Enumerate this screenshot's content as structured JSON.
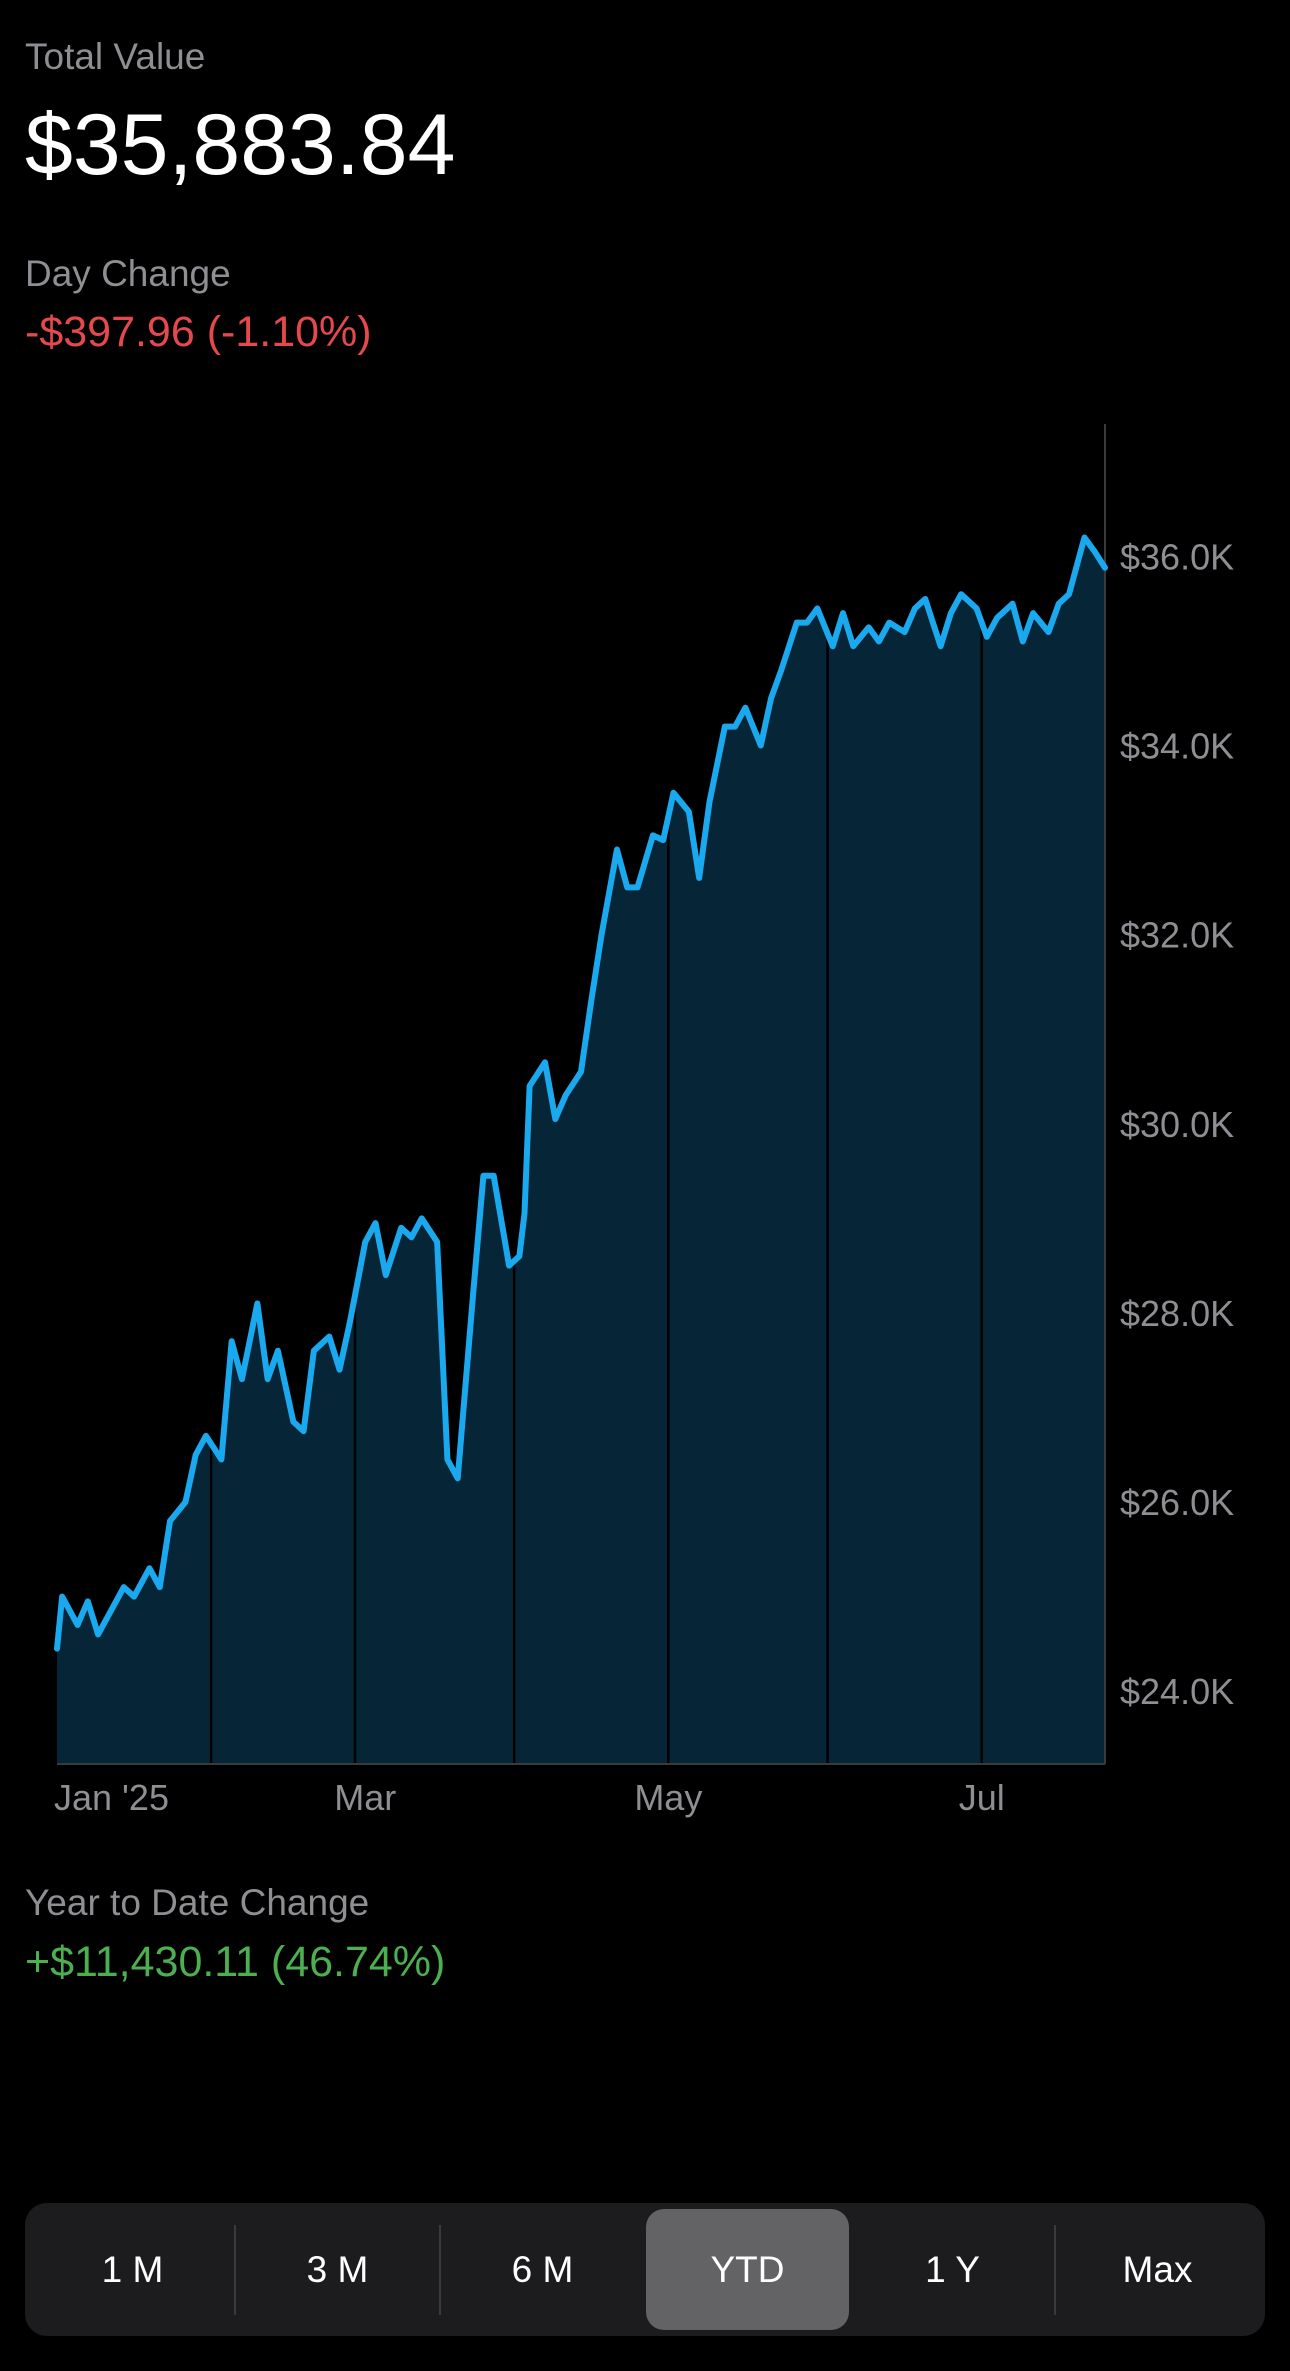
{
  "header": {
    "total_value_label": "Total Value",
    "total_value": "$35,883.84",
    "day_change_label": "Day Change",
    "day_change": "-$397.96 (-1.10%)"
  },
  "footer": {
    "ytd_label": "Year to Date Change",
    "ytd_change": "+$11,430.11 (46.74%)"
  },
  "colors": {
    "negative": "#e5484d",
    "positive": "#4caf50",
    "line": "#1aa9ee",
    "area": "#062536",
    "muted": "#8e8e93"
  },
  "range_selector": {
    "options": [
      "1 M",
      "3 M",
      "6 M",
      "YTD",
      "1 Y",
      "Max"
    ],
    "selected": "YTD"
  },
  "chart_data": {
    "type": "area",
    "y_tick_labels": [
      "$36.0K",
      "$34.0K",
      "$32.0K",
      "$30.0K",
      "$28.0K",
      "$26.0K",
      "$24.0K"
    ],
    "y_ticks": [
      36000,
      34000,
      32000,
      30000,
      28000,
      26000,
      24000
    ],
    "x_tick_labels": [
      "Jan '25",
      "Mar",
      "May",
      "Jul"
    ],
    "x_tick_dates": [
      "2025-01-02",
      "2025-03-03",
      "2025-05-01",
      "2025-07-01"
    ],
    "month_gridline_dates": [
      "2025-02-01",
      "2025-03-01",
      "2025-04-01",
      "2025-05-01",
      "2025-06-01",
      "2025-07-01"
    ],
    "ylim": [
      23230,
      37400
    ],
    "xlim": [
      "2025-01-02",
      "2025-07-25"
    ],
    "x_scale": "date",
    "y_axis_position": "right",
    "series": [
      {
        "x": [
          "2025-01-02",
          "2025-01-03",
          "2025-01-06",
          "2025-01-08",
          "2025-01-10",
          "2025-01-13",
          "2025-01-15",
          "2025-01-17",
          "2025-01-20",
          "2025-01-22",
          "2025-01-24",
          "2025-01-27",
          "2025-01-29",
          "2025-01-31",
          "2025-02-03",
          "2025-02-05",
          "2025-02-07",
          "2025-02-10",
          "2025-02-12",
          "2025-02-14",
          "2025-02-17",
          "2025-02-19",
          "2025-02-21",
          "2025-02-24",
          "2025-02-26",
          "2025-02-28",
          "2025-03-03",
          "2025-03-05",
          "2025-03-07",
          "2025-03-10",
          "2025-03-12",
          "2025-03-14",
          "2025-03-17",
          "2025-03-19",
          "2025-03-21",
          "2025-03-24",
          "2025-03-26",
          "2025-03-28",
          "2025-03-31",
          "2025-04-02",
          "2025-04-03",
          "2025-04-04",
          "2025-04-07",
          "2025-04-09",
          "2025-04-11",
          "2025-04-14",
          "2025-04-16",
          "2025-04-18",
          "2025-04-21",
          "2025-04-23",
          "2025-04-25",
          "2025-04-28",
          "2025-04-30",
          "2025-05-02",
          "2025-05-05",
          "2025-05-07",
          "2025-05-09",
          "2025-05-12",
          "2025-05-14",
          "2025-05-16",
          "2025-05-19",
          "2025-05-21",
          "2025-05-23",
          "2025-05-26",
          "2025-05-28",
          "2025-05-30",
          "2025-06-02",
          "2025-06-04",
          "2025-06-06",
          "2025-06-09",
          "2025-06-11",
          "2025-06-13",
          "2025-06-16",
          "2025-06-18",
          "2025-06-20",
          "2025-06-23",
          "2025-06-25",
          "2025-06-27",
          "2025-06-30",
          "2025-07-02",
          "2025-07-04",
          "2025-07-07",
          "2025-07-09",
          "2025-07-11",
          "2025-07-14",
          "2025-07-16",
          "2025-07-18",
          "2025-07-21",
          "2025-07-23",
          "2025-07-25"
        ],
        "y": [
          24450,
          25000,
          24700,
          24950,
          24600,
          24900,
          25100,
          25000,
          25300,
          25100,
          25800,
          26000,
          26500,
          26700,
          26450,
          27700,
          27300,
          28100,
          27300,
          27600,
          26850,
          26750,
          27600,
          27750,
          27400,
          27900,
          28750,
          28950,
          28400,
          28900,
          28800,
          29000,
          28750,
          26450,
          26250,
          28200,
          29450,
          29450,
          28500,
          28600,
          29050,
          30400,
          30650,
          30050,
          30300,
          30550,
          31300,
          32000,
          32900,
          32500,
          32500,
          33050,
          33000,
          33500,
          33300,
          32600,
          33400,
          34200,
          34200,
          34400,
          34000,
          34500,
          34800,
          35300,
          35300,
          35450,
          35050,
          35400,
          35050,
          35250,
          35100,
          35300,
          35200,
          35450,
          35550,
          35050,
          35400,
          35600,
          35450,
          35150,
          35350,
          35500,
          35100,
          35400,
          35200,
          35500,
          35600,
          36200,
          36050,
          35880
        ]
      }
    ]
  }
}
